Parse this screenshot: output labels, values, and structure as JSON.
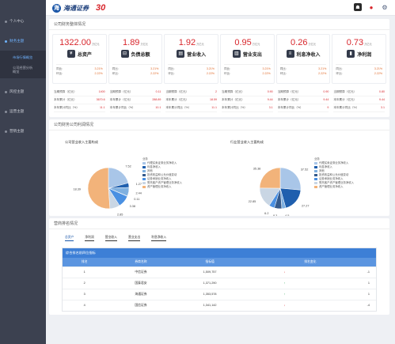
{
  "sidebar": {
    "groups": [
      {
        "label": "个人中心"
      },
      {
        "label": "财务主题"
      },
      {
        "label": "风控主题"
      },
      {
        "label": "运营主题"
      },
      {
        "label": "营销主题"
      }
    ],
    "sub_items": [
      {
        "label": "市场行情概览"
      },
      {
        "label": "公司经营分析概览"
      }
    ]
  },
  "topbar": {
    "logo_mark": "海",
    "logo_text": "海通证券",
    "logo_badge": "30"
  },
  "overview": {
    "title": "公司财务整体情况",
    "kpis": [
      {
        "value": "1322.00",
        "unit": "万亿元",
        "label": "总资产",
        "icon": "¥",
        "yoy_label": "同比:",
        "yoy": "3.21%",
        "mom_label": "环比:",
        "mom": "2.22%"
      },
      {
        "value": "1.89",
        "unit": "万亿元",
        "label": "负债总额",
        "icon": "⊟",
        "yoy_label": "同比:",
        "yoy": "3.21%",
        "mom_label": "环比:",
        "mom": "2.22%"
      },
      {
        "value": "1.92",
        "unit": "万亿元",
        "label": "营业收入",
        "icon": "▤",
        "yoy_label": "同比:",
        "yoy": "3.21%",
        "mom_label": "环比:",
        "mom": "2.22%"
      },
      {
        "value": "0.95",
        "unit": "万亿元",
        "label": "营业支出",
        "icon": "▥",
        "yoy_label": "同比:",
        "yoy": "3.21%",
        "mom_label": "环比:",
        "mom": "2.22%"
      },
      {
        "value": "0.26",
        "unit": "万亿元",
        "label": "利息净收入",
        "icon": "≡",
        "yoy_label": "同比:",
        "yoy": "3.21%",
        "mom_label": "环比:",
        "mom": "2.22%"
      },
      {
        "value": "0.73",
        "unit": "万亿元",
        "label": "净利润",
        "icon": "▮",
        "yoy_label": "同比:",
        "yoy": "3.21%",
        "mom_label": "环比:",
        "mom": "2.22%"
      }
    ],
    "stats": [
      [
        {
          "k": "当期预算（亿元）",
          "v": "1400"
        },
        {
          "k": "本年累计（亿元）",
          "v": "3670.6"
        },
        {
          "k": "本年累计同比（%）",
          "v": "11.1"
        }
      ],
      [
        {
          "k": "当期预算（亿元）",
          "v": "0.11"
        },
        {
          "k": "本年累计（亿元）",
          "v": "288.89"
        },
        {
          "k": "本年累计同比（%）",
          "v": "10.1"
        }
      ],
      [
        {
          "k": "当期预算（亿元）",
          "v": "2"
        },
        {
          "k": "本年累计（亿元）",
          "v": "18.59"
        },
        {
          "k": "本年累计同比（%）",
          "v": "11.1"
        }
      ],
      [
        {
          "k": "当期预算（亿元）",
          "v": "0.90"
        },
        {
          "k": "本年累计（亿元）",
          "v": "9.44"
        },
        {
          "k": "本年累计同比（%）",
          "v": "3.1"
        }
      ],
      [
        {
          "k": "当期预算（亿元）",
          "v": "0.90"
        },
        {
          "k": "本年累计（亿元）",
          "v": "9.44"
        },
        {
          "k": "本年累计同比（%）",
          "v": "9"
        }
      ],
      [
        {
          "k": "当期预算（亿元）",
          "v": "0.80"
        },
        {
          "k": "本年累计（亿元）",
          "v": "9.44"
        },
        {
          "k": "本年累计同比（%）",
          "v": "3.1"
        }
      ]
    ]
  },
  "business": {
    "title": "公司财务公司利润情况"
  },
  "chart_data": [
    {
      "type": "pie",
      "title": "公司营业收入主要构成",
      "legend_title": "业务",
      "legend_position": "right",
      "slices": [
        {
          "name": "代理买卖证券业务净收入",
          "value": 7.52,
          "color": "#a9c6e8"
        },
        {
          "name": "利息净收入",
          "value": 1.27,
          "color": "#1f5fae"
        },
        {
          "name": "其他",
          "value": 2.44,
          "color": "#7fb0e0"
        },
        {
          "name": "投资收益和公允价值变动",
          "value": 0.11,
          "color": "#345a8c"
        },
        {
          "name": "证券承销业务净收入",
          "value": 3.38,
          "color": "#4a90e2"
        },
        {
          "name": "受托客户资产管理业务净收入",
          "value": 2.85,
          "color": "#c9d6e4"
        },
        {
          "name": "资产管理业务净收入",
          "value": 18.39,
          "color": "#f2b37a"
        }
      ]
    },
    {
      "type": "pie",
      "title": "行业营业收入主要构成",
      "legend_title": "业务",
      "legend_position": "right",
      "slices": [
        {
          "name": "代理买卖证券业务净收入",
          "value": 37.52,
          "color": "#a9c6e8"
        },
        {
          "name": "利息净收入",
          "value": 27.27,
          "color": "#1f5fae"
        },
        {
          "name": "其他",
          "value": 4.5,
          "color": "#7fb0e0"
        },
        {
          "name": "投资收益和公允价值变动",
          "value": 8.3,
          "color": "#345a8c"
        },
        {
          "name": "证券承销业务净收入",
          "value": 6.2,
          "color": "#4a90e2"
        },
        {
          "name": "受托客户资产管理业务净收入",
          "value": 22.85,
          "color": "#c9d6e4"
        },
        {
          "name": "资产管理业务净收入",
          "value": 35.38,
          "color": "#f2b37a"
        }
      ]
    }
  ],
  "ranking": {
    "title": "营商排名情况",
    "tabs": [
      "总资产",
      "净利润",
      "营业收入",
      "营业支出",
      "利息净收入"
    ],
    "table_title": "综合排名前四位指标",
    "columns": [
      "排名",
      "券商名称",
      "指标值",
      "排名变化"
    ],
    "rows": [
      {
        "rank": "1",
        "name": "中信证券",
        "value": "1,509,757",
        "dir": "down",
        "change": "-1"
      },
      {
        "rank": "2",
        "name": "国泰君安",
        "value": "1,371,290",
        "dir": "up",
        "change": "1"
      },
      {
        "rank": "3",
        "name": "海通证券",
        "value": "1,353,578",
        "dir": "up",
        "change": "1"
      },
      {
        "rank": "4",
        "name": "国信证券",
        "value": "1,341,142",
        "dir": "down",
        "change": "-4"
      }
    ]
  }
}
